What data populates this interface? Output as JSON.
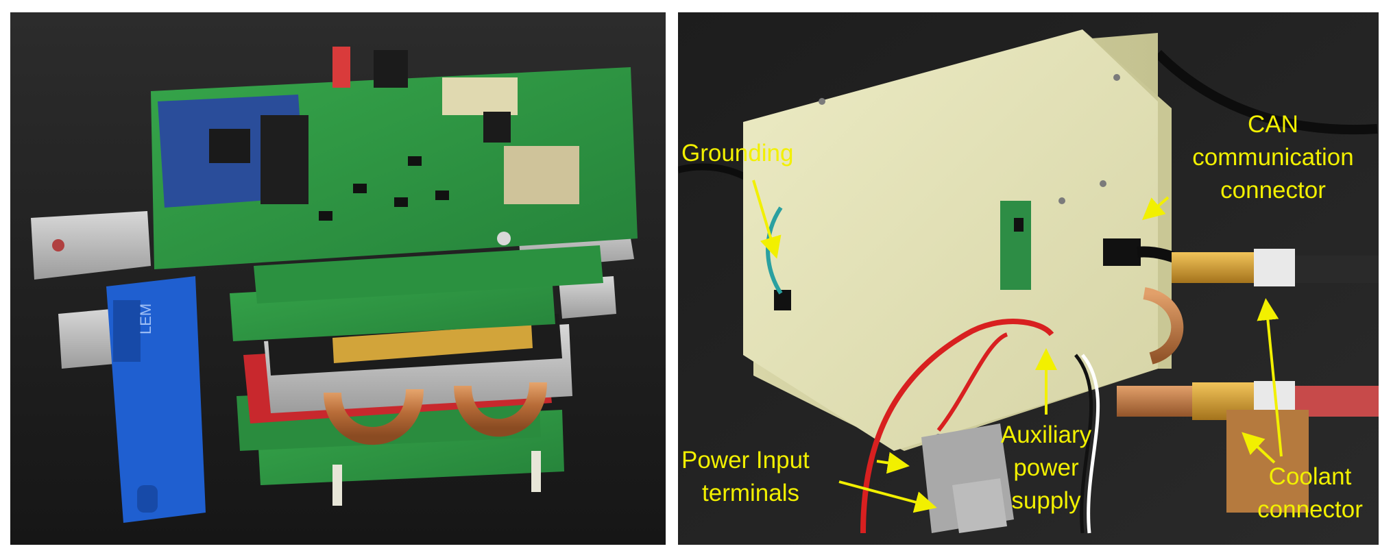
{
  "labels": {
    "grounding": "Grounding",
    "can_line1": "CAN",
    "can_line2": "communication",
    "can_line3": "connector",
    "power_input_line1": "Power Input",
    "power_input_line2": "terminals",
    "aux_line1": "Auxiliary",
    "aux_line2": "power",
    "aux_line3": "supply",
    "coolant_line1": "Coolant",
    "coolant_line2": "connector"
  },
  "markings": {
    "sensor_brand": "LEM"
  },
  "colors": {
    "label_color": "#f2f000",
    "pcb_green": "#2f9a42",
    "enclosure": "#e3e1b4",
    "copper": "#c9804a",
    "sensor_blue": "#1f5fd0"
  }
}
